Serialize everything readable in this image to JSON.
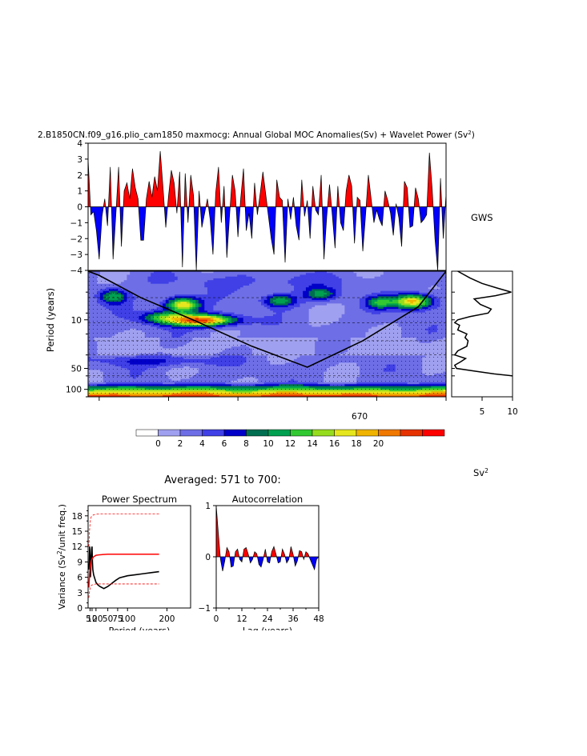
{
  "title": "2.B1850CN.f09_g16.plio_cam1850 maxmocg: Annual Global MOC Anomalies(Sv) + Wavelet Power (Sv²)",
  "title_main": "2.B1850CN.f09_g16.plio_cam1850 maxmocg: Annual Global MOC Anomalies(Sv) + Wavelet Power (Sv",
  "title_sup": "2",
  "title_end": ")",
  "colors": {
    "positive": "#ff0000",
    "negative": "#0000ff",
    "palette": [
      "#ffffff",
      "#a0a0f0",
      "#6e6ee6",
      "#4040e6",
      "#0000c8",
      "#006e50",
      "#00a050",
      "#32c832",
      "#96dc1e",
      "#e6e61e",
      "#f0b400",
      "#f07800",
      "#e63200",
      "#ff0000"
    ]
  },
  "gws_label": "GWS",
  "sv2_label": "Sv",
  "sv2_sup": "2",
  "averaged_label": "Averaged: 571 to 700:",
  "chart_data": [
    {
      "id": "timeseries",
      "type": "area",
      "ylim": [
        -4,
        4
      ],
      "yticks": [
        "4",
        "3",
        "2",
        "1",
        "0",
        "−1",
        "−2",
        "−3",
        "−4"
      ],
      "year_range": [
        571,
        700
      ],
      "y": [
        3.0,
        -0.5,
        -0.3,
        -1.5,
        -3.3,
        -0.6,
        0.5,
        -1.2,
        2.5,
        -3.3,
        -0.5,
        2.5,
        -2.5,
        1.0,
        1.5,
        0.5,
        2.4,
        1.2,
        0.5,
        -2.1,
        -2.1,
        0.5,
        1.6,
        0.6,
        1.9,
        1.0,
        3.5,
        1.2,
        -1.3,
        0.7,
        2.3,
        1.5,
        -0.4,
        2.2,
        -3.8,
        2.1,
        -1.0,
        2.0,
        0.7,
        -4.0,
        1.0,
        -1.3,
        -0.4,
        0.5,
        -0.8,
        -3.0,
        0.9,
        2.5,
        -1.0,
        1.3,
        -3.2,
        -0.5,
        2.0,
        1.0,
        -1.9,
        0.5,
        2.4,
        -1.5,
        -0.4,
        -2.0,
        1.5,
        -0.5,
        0.8,
        2.2,
        0.8,
        -0.6,
        -2.0,
        -3.0,
        1.7,
        0.6,
        0.4,
        -3.5,
        0.5,
        -0.8,
        0.6,
        -1.2,
        -2.1,
        1.7,
        -0.6,
        0.4,
        -2.0,
        1.3,
        -0.2,
        -0.5,
        2.0,
        -3.3,
        -0.6,
        1.4,
        -0.5,
        -2.6,
        1.3,
        -1.0,
        -1.5,
        1.0,
        2.0,
        1.3,
        -2.3,
        0.6,
        0.4,
        -2.8,
        -0.5,
        2.0,
        0.5,
        -1.0,
        -0.2,
        -0.8,
        -1.2,
        1.0,
        0.4,
        -0.4,
        -1.8,
        0.2,
        -0.7,
        -2.5,
        1.6,
        1.2,
        -1.3,
        -1.2,
        1.2,
        0.5,
        -1.0,
        -0.8,
        -0.5,
        3.4,
        1.1,
        -2.0,
        -4.0,
        1.8,
        -2.0,
        0.8
      ]
    },
    {
      "id": "wavelet",
      "type": "heatmap",
      "ylabel": "Period (years)",
      "yticks": [
        "10",
        "50",
        "100"
      ],
      "xticks": [
        "670"
      ],
      "period_range": [
        2,
        128
      ],
      "x_range": [
        571,
        700
      ],
      "cone_of_influence": [
        [
          571,
          2
        ],
        [
          575,
          2.3
        ],
        [
          590,
          4.8
        ],
        [
          610,
          10.5
        ],
        [
          630,
          24
        ],
        [
          650,
          48
        ],
        [
          670,
          20
        ],
        [
          690,
          6.5
        ],
        [
          700,
          2
        ]
      ]
    },
    {
      "id": "gws",
      "type": "line",
      "label": "GWS",
      "xticks": [
        "5",
        "10"
      ],
      "xlim": [
        0,
        10
      ],
      "period": [
        2.0,
        2.5,
        3.0,
        3.5,
        4.0,
        4.5,
        5.0,
        6.0,
        7.0,
        8.0,
        9.0,
        10,
        11,
        12,
        14,
        16,
        18,
        20,
        24,
        28,
        32,
        36,
        40,
        45,
        50,
        55,
        60,
        64
      ],
      "power": [
        1.0,
        3.0,
        5.0,
        7.5,
        9.8,
        7.2,
        3.7,
        4.7,
        6.5,
        6.0,
        3.0,
        1.0,
        0.5,
        1.3,
        1.0,
        2.5,
        2.2,
        2.7,
        2.5,
        1.0,
        0.5,
        2.3,
        1.5,
        0.5,
        0.8,
        4.0,
        7.0,
        10
      ]
    },
    {
      "id": "colorbar",
      "type": "table",
      "labels": [
        "0",
        "2",
        "4",
        "6",
        "8",
        "10",
        "12",
        "14",
        "16",
        "18",
        "20"
      ]
    },
    {
      "id": "power_spectrum",
      "type": "line",
      "title": "Power Spectrum",
      "xlabel": "Period (years)",
      "ylabel": "Variance (Sv²/unit freq.)",
      "ylabel_main": "Variance (Sv",
      "ylabel_sup": "2",
      "ylabel_end": "/unit freq.)",
      "xlim": [
        0,
        260
      ],
      "ylim": [
        0,
        20
      ],
      "xticks": [
        "5",
        "10",
        "20",
        "50",
        "75",
        "100",
        "200"
      ],
      "yticks": [
        "0",
        "3",
        "6",
        "9",
        "12",
        "15",
        "18"
      ],
      "series": [
        {
          "id": "spectrum",
          "x": [
            2,
            3,
            4,
            5,
            6,
            7,
            8,
            9,
            10,
            11,
            12,
            14,
            16,
            18,
            20,
            25,
            30,
            40,
            50,
            60,
            70,
            80,
            100,
            120,
            140,
            160,
            180
          ],
          "y": [
            7.5,
            9.0,
            12,
            10,
            6.0,
            8.0,
            10,
            11.5,
            12,
            9.0,
            7.5,
            6.5,
            6.0,
            5.5,
            5.0,
            4.5,
            4.2,
            3.8,
            4.2,
            4.8,
            5.4,
            5.9,
            6.3,
            6.5,
            6.7,
            6.9,
            7.1
          ]
        },
        {
          "id": "red_noise",
          "x": [
            2,
            3,
            4,
            5,
            6,
            8,
            10,
            14,
            20,
            30,
            50,
            80,
            120,
            180
          ],
          "y": [
            4.0,
            5.6,
            7.0,
            7.8,
            8.4,
            9.2,
            9.6,
            10.0,
            10.3,
            10.4,
            10.5,
            10.5,
            10.5,
            10.5
          ]
        },
        {
          "id": "upper_95",
          "x": [
            2,
            3,
            4,
            5,
            6,
            8,
            10,
            14,
            20,
            30,
            50,
            80,
            120,
            180
          ],
          "y": [
            12.0,
            14.0,
            15.5,
            16.5,
            17.2,
            17.8,
            18.0,
            18.2,
            18.3,
            18.4,
            18.4,
            18.4,
            18.4,
            18.4
          ]
        },
        {
          "id": "lower_5",
          "x": [
            2,
            3,
            4,
            5,
            6,
            8,
            10,
            14,
            20,
            30,
            50,
            80,
            120,
            180
          ],
          "y": [
            2.0,
            2.8,
            3.4,
            3.8,
            4.1,
            4.4,
            4.5,
            4.6,
            4.7,
            4.7,
            4.7,
            4.7,
            4.7,
            4.7
          ]
        }
      ]
    },
    {
      "id": "autocorrelation",
      "type": "area",
      "title": "Autocorrelation",
      "xlabel": "Lag (years)",
      "xlim": [
        0,
        48
      ],
      "ylim": [
        -1,
        1
      ],
      "xticks": [
        "0",
        "12",
        "24",
        "36",
        "48"
      ],
      "yticks": [
        "1",
        "0",
        "−1"
      ],
      "lags": [
        0,
        1,
        2,
        3,
        4,
        5,
        6,
        7,
        8,
        9,
        10,
        11,
        12,
        13,
        14,
        15,
        16,
        17,
        18,
        19,
        20,
        21,
        22,
        23,
        24,
        25,
        26,
        27,
        28,
        29,
        30,
        31,
        32,
        33,
        34,
        35,
        36,
        37,
        38,
        39,
        40,
        41,
        42,
        43,
        44,
        45,
        46,
        47,
        48
      ],
      "values": [
        1.0,
        0.45,
        -0.05,
        -0.28,
        -0.08,
        0.18,
        0.1,
        -0.2,
        -0.18,
        0.1,
        0.15,
        -0.05,
        -0.1,
        0.15,
        0.18,
        0.05,
        -0.12,
        -0.05,
        0.1,
        0.06,
        -0.15,
        -0.2,
        -0.05,
        0.15,
        -0.1,
        -0.12,
        0.1,
        0.2,
        0.05,
        -0.12,
        -0.1,
        0.15,
        0.05,
        -0.12,
        -0.05,
        0.2,
        0.05,
        -0.18,
        -0.08,
        0.12,
        0.1,
        -0.05,
        0.1,
        0.06,
        -0.05,
        -0.15,
        -0.25,
        -0.05,
        0.0
      ]
    }
  ]
}
